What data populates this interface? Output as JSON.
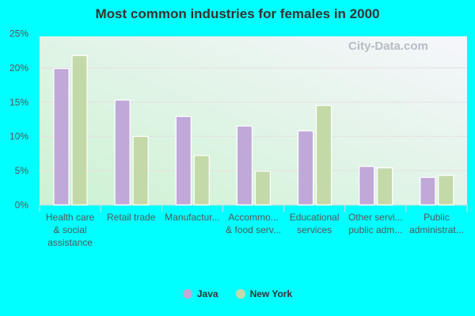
{
  "chart_data": {
    "type": "bar",
    "title": "Most common industries for females in 2000",
    "categories": [
      "Health care & social assistance",
      "Retail trade",
      "Manufactur...",
      "Accommo... & food serv...",
      "Educational services",
      "Other servi... public adm...",
      "Public administrat..."
    ],
    "category_lines": [
      [
        "Health care",
        "& social",
        "assistance"
      ],
      [
        "Retail trade"
      ],
      [
        "Manufactur..."
      ],
      [
        "Accommo...",
        "& food serv..."
      ],
      [
        "Educational",
        "services"
      ],
      [
        "Other servi...",
        "public adm..."
      ],
      [
        "Public",
        "administrat..."
      ]
    ],
    "series": [
      {
        "name": "Java",
        "color": "#c0a8d8",
        "values": [
          19.9,
          15.3,
          12.9,
          11.5,
          10.8,
          5.6,
          4.0
        ]
      },
      {
        "name": "New York",
        "color": "#c4d9a8",
        "values": [
          21.8,
          10.0,
          7.2,
          4.9,
          14.5,
          5.4,
          4.3
        ]
      }
    ],
    "ylim": [
      0,
      25
    ],
    "yticks": [
      "0%",
      "5%",
      "10%",
      "15%",
      "20%",
      "25%"
    ],
    "grid": true,
    "legend": "bottom"
  },
  "watermark": "City-Data.com"
}
